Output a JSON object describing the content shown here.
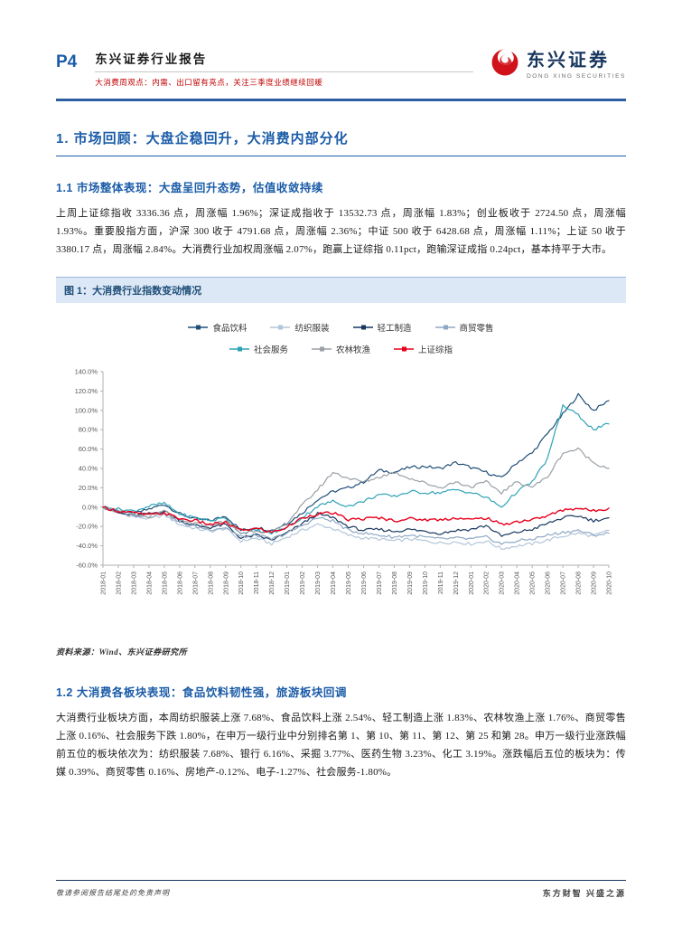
{
  "header": {
    "page_number": "P4",
    "report_title": "东兴证券行业报告",
    "report_subtitle": "大消费周观点：内需、出口留有亮点，关注三季度业绩继续回暖",
    "logo_cn": "东兴证券",
    "logo_en": "DONG XING SECURITIES"
  },
  "section1": {
    "title": "1. 市场回顾：大盘企稳回升，大消费内部分化",
    "sub1_title": "1.1 市场整体表现：大盘呈回升态势，估值收敛持续",
    "body1": "上周上证综指收 3336.36 点，周涨幅 1.96%；深证成指收于 13532.73 点，周涨幅 1.83%；创业板收于 2724.50 点，周涨幅 1.93%。重要股指方面，沪深 300 收于 4791.68 点，周涨幅 2.36%；中证 500 收于 6428.68 点，周涨幅 1.11%；上证 50 收于 3380.17 点，周涨幅 2.84%。大消费行业加权周涨幅 2.07%，跑赢上证综指 0.11pct，跑输深证成指 0.24pct，基本持平于大市。",
    "sub2_title": "1.2 大消费各板块表现：食品饮料韧性强，旅游板块回调",
    "body2": "大消费行业板块方面，本周纺织服装上涨 7.68%、食品饮料上涨 2.54%、轻工制造上涨 1.83%、农林牧渔上涨 1.76%、商贸零售上涨 0.16%、社会服务下跌 1.80%，在申万一级行业中分别排名第 1、第 10、第 11、第 12、第 25 和第 28。申万一级行业涨跌幅前五位的板块依次为：纺织服装 7.68%、银行 6.16%、采掘 3.77%、医药生物 3.23%、化工 3.19%。涨跌幅后五位的板块为：传媒 0.39%、商贸零售 0.16%、房地产-0.12%、电子-1.27%、社会服务-1.80%。"
  },
  "figure": {
    "caption": "图 1：大消费行业指数变动情况",
    "source": "资料来源：Wind、东兴证券研究所"
  },
  "footer": {
    "left": "敬请参阅报告结尾处的免责声明",
    "right": "东方财智 兴盛之源"
  },
  "chart_data": {
    "type": "line",
    "title": "大消费行业指数变动情况",
    "xlabel": "",
    "ylabel": "",
    "ylim": [
      -60,
      140
    ],
    "ytick_step": 20,
    "grid": false,
    "legend_position": "top",
    "legend_row_break_after": 4,
    "categories": [
      "2018-01",
      "2018-02",
      "2018-03",
      "2018-04",
      "2018-05",
      "2018-06",
      "2018-07",
      "2018-08",
      "2018-09",
      "2018-10",
      "2018-11",
      "2018-12",
      "2019-01",
      "2019-02",
      "2019-03",
      "2019-04",
      "2019-05",
      "2019-06",
      "2019-07",
      "2019-08",
      "2019-09",
      "2019-10",
      "2019-11",
      "2019-12",
      "2020-01",
      "2020-02",
      "2020-03",
      "2020-04",
      "2020-05",
      "2020-06",
      "2020-07",
      "2020-08",
      "2020-09",
      "2020-10"
    ],
    "series": [
      {
        "name": "食品饮料",
        "color": "#1F4E79",
        "values": [
          0,
          -4,
          -7,
          -2,
          3,
          -7,
          -12,
          -14,
          -9,
          -24,
          -21,
          -24,
          -17,
          -6,
          8,
          16,
          20,
          26,
          38,
          36,
          41,
          42,
          40,
          46,
          41,
          36,
          30,
          46,
          56,
          76,
          96,
          116,
          100,
          110
        ]
      },
      {
        "name": "纺织服装",
        "color": "#B3C6D9",
        "values": [
          0,
          -6,
          -10,
          -12,
          -8,
          -18,
          -22,
          -25,
          -22,
          -35,
          -32,
          -38,
          -31,
          -24,
          -18,
          -22,
          -29,
          -32,
          -33,
          -35,
          -33,
          -35,
          -37,
          -36,
          -38,
          -35,
          -43,
          -40,
          -38,
          -34,
          -30,
          -27,
          -30,
          -24
        ]
      },
      {
        "name": "轻工制造",
        "color": "#17375E",
        "values": [
          0,
          -6,
          -9,
          -7,
          -4,
          -14,
          -19,
          -21,
          -18,
          -32,
          -29,
          -34,
          -27,
          -17,
          -7,
          -11,
          -20,
          -24,
          -23,
          -25,
          -23,
          -25,
          -27,
          -24,
          -23,
          -19,
          -30,
          -26,
          -23,
          -17,
          -11,
          -9,
          -14,
          -11
        ]
      },
      {
        "name": "商贸零售",
        "color": "#8FA9C4",
        "values": [
          0,
          -4,
          -8,
          -10,
          -6,
          -16,
          -20,
          -23,
          -21,
          -31,
          -29,
          -33,
          -27,
          -19,
          -11,
          -14,
          -24,
          -27,
          -29,
          -31,
          -29,
          -31,
          -33,
          -32,
          -33,
          -31,
          -38,
          -35,
          -33,
          -29,
          -26,
          -24,
          -29,
          -27
        ]
      },
      {
        "name": "社会服务",
        "color": "#2EA3B7",
        "values": [
          0,
          -2,
          -4,
          1,
          4,
          -7,
          -11,
          -14,
          -11,
          -27,
          -24,
          -27,
          -21,
          -11,
          1,
          6,
          1,
          6,
          13,
          11,
          16,
          15,
          15,
          18,
          15,
          10,
          0,
          16,
          26,
          50,
          105,
          95,
          80,
          86
        ]
      },
      {
        "name": "农林牧渔",
        "color": "#9AA0A6",
        "values": [
          0,
          -5,
          -8,
          -10,
          -4,
          -14,
          -17,
          -19,
          -14,
          -27,
          -24,
          -27,
          -16,
          2,
          18,
          36,
          30,
          26,
          31,
          36,
          30,
          25,
          20,
          26,
          21,
          26,
          15,
          26,
          21,
          31,
          56,
          60,
          46,
          40
        ]
      },
      {
        "name": "上证综指",
        "color": "#E8001C",
        "values": [
          0,
          -4,
          -6,
          -8,
          -6,
          -12,
          -14,
          -18,
          -16,
          -24,
          -22,
          -26,
          -21,
          -11,
          -7,
          -6,
          -13,
          -12,
          -11,
          -14,
          -12,
          -13,
          -13,
          -11,
          -13,
          -11,
          -18,
          -15,
          -13,
          -9,
          -3,
          -1,
          -4,
          -1
        ]
      }
    ]
  }
}
